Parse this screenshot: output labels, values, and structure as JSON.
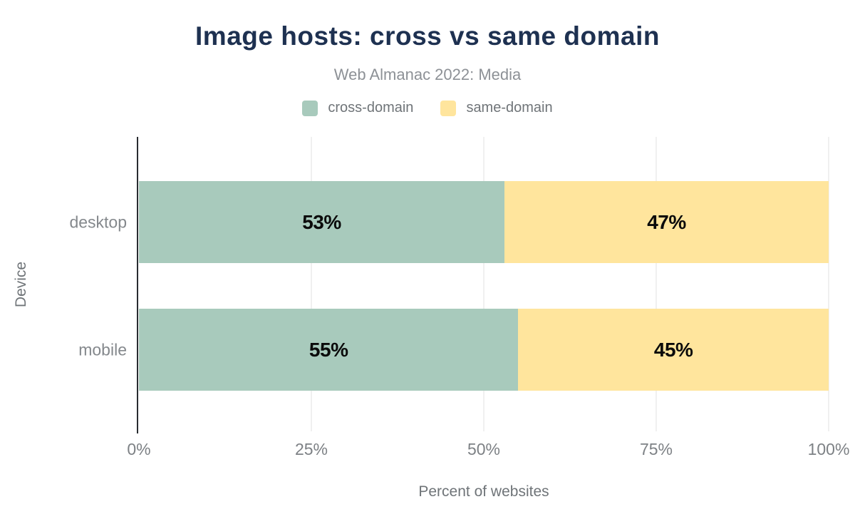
{
  "title": "Image hosts: cross vs same domain",
  "subtitle": "Web Almanac 2022: Media",
  "colors": {
    "cross_domain": "#a8cabc",
    "same_domain": "#ffe59d",
    "title_text": "#1e3151",
    "subtitle_text": "#8d9196",
    "axis_text": "#6f7478",
    "tick_text": "#7d8185",
    "bar_label_text": "#0b0b0b",
    "gridline": "#f0f0f0",
    "axis_line": "#292c30",
    "background": "#ffffff"
  },
  "legend": {
    "items": [
      {
        "label": "cross-domain",
        "color": "#a8cabc"
      },
      {
        "label": "same-domain",
        "color": "#ffe59d"
      }
    ]
  },
  "chart_data": {
    "type": "bar",
    "orientation": "horizontal",
    "stacked": true,
    "title": "Image hosts: cross vs same domain",
    "subtitle": "Web Almanac 2022: Media",
    "categories": [
      "desktop",
      "mobile"
    ],
    "series": [
      {
        "name": "cross-domain",
        "color": "#a8cabc",
        "values": [
          53,
          55
        ]
      },
      {
        "name": "same-domain",
        "color": "#ffe59d",
        "values": [
          47,
          45
        ]
      }
    ],
    "data_labels": [
      [
        "53%",
        "47%"
      ],
      [
        "55%",
        "45%"
      ]
    ],
    "xlabel": "Percent of websites",
    "ylabel": "Device",
    "xlim": [
      0,
      100
    ],
    "x_ticks": [
      {
        "label": "0%",
        "value": 0
      },
      {
        "label": "25%",
        "value": 25
      },
      {
        "label": "50%",
        "value": 50
      },
      {
        "label": "75%",
        "value": 75
      },
      {
        "label": "100%",
        "value": 100
      }
    ],
    "grid": "vertical-gridlines-at-ticks-except-zero",
    "legend_position": "top"
  }
}
